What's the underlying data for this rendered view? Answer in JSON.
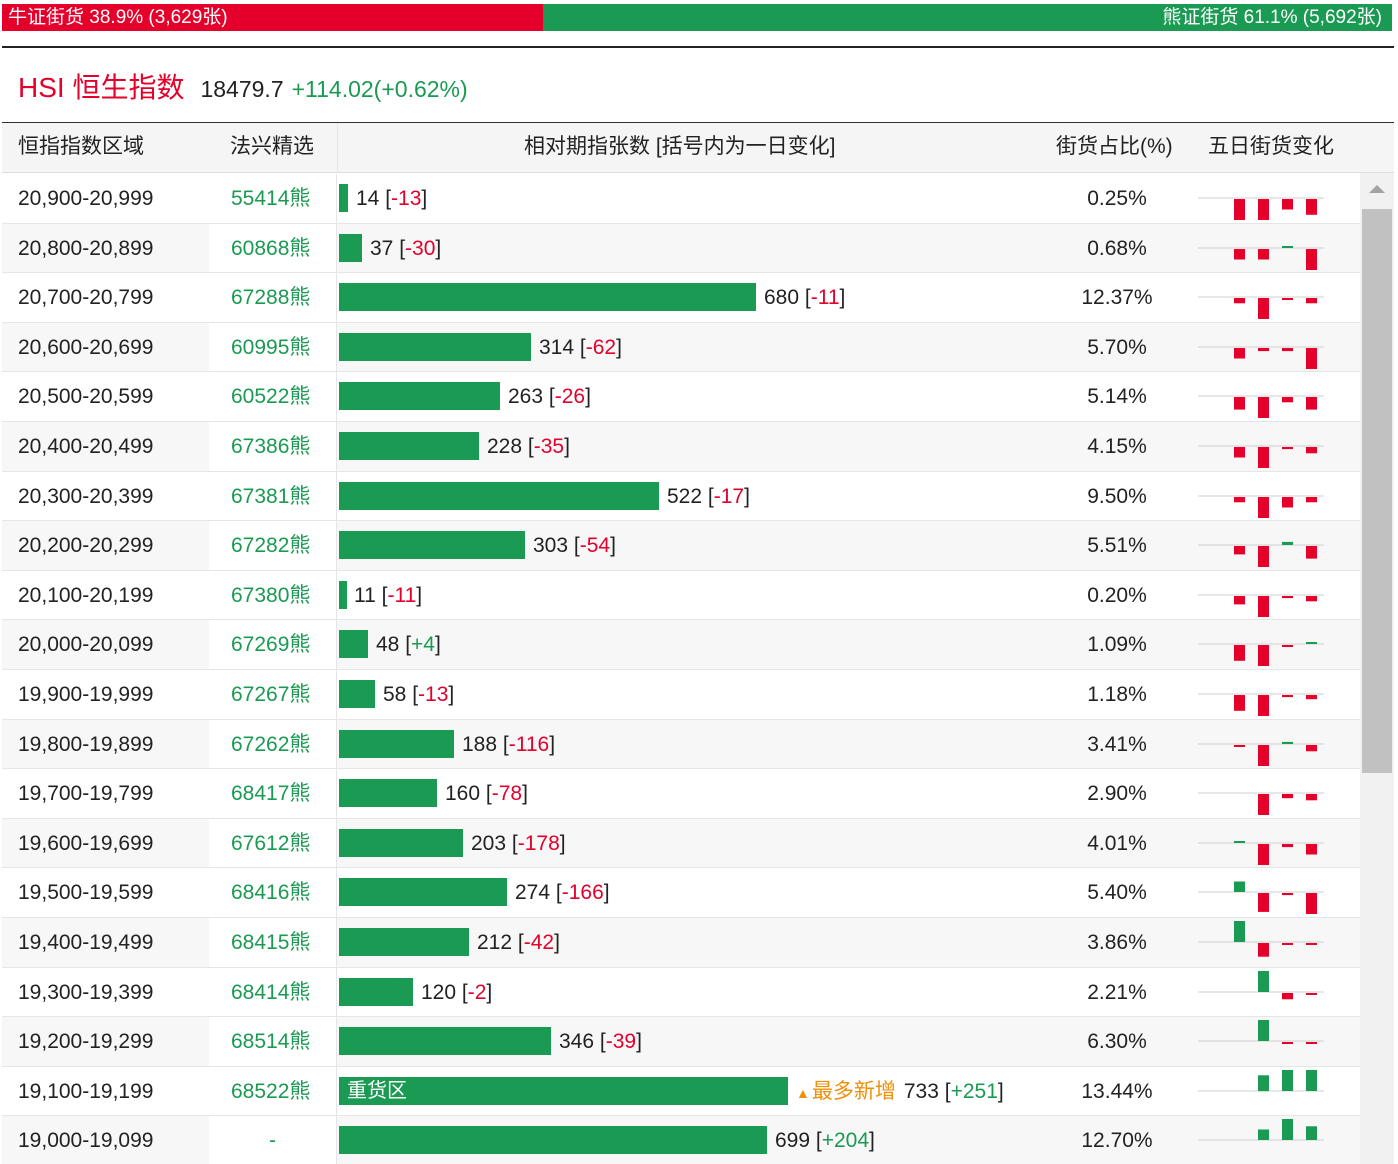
{
  "summary": {
    "bull_label": "牛证街货 38.9% (3,629张)",
    "bear_label": "熊证街货 61.1% (5,692张)",
    "bull_pct": 38.9,
    "bear_pct": 61.1,
    "bull_color": "#e4002b",
    "bear_color": "#1a9a52"
  },
  "index": {
    "name": "HSI 恒生指数",
    "value": "18479.7",
    "change": "+114.02(+0.62%)"
  },
  "headers": {
    "range": "恒指指数区域",
    "pick": "法兴精选",
    "count": "相对期指张数 [括号内为一日变化]",
    "ratio": "街货占比(%)",
    "five_day": "五日街货变化"
  },
  "rows": [
    {
      "range": "20,900-20,999",
      "code": "55414熊",
      "value": 14,
      "value_text": "14",
      "change": "-13",
      "ratio": "0.25%",
      "spark": [
        0,
        -2,
        -2,
        -1,
        -1.5
      ]
    },
    {
      "range": "20,800-20,899",
      "code": "60868熊",
      "value": 37,
      "value_text": "37",
      "change": "-30",
      "ratio": "0.68%",
      "spark": [
        0,
        -1,
        -1,
        0.15,
        -2
      ]
    },
    {
      "range": "20,700-20,799",
      "code": "67288熊",
      "value": 680,
      "value_text": "680",
      "change": "-11",
      "ratio": "12.37%",
      "spark": [
        0,
        -0.5,
        -2,
        -0.15,
        -0.5
      ]
    },
    {
      "range": "20,600-20,699",
      "code": "60995熊",
      "value": 314,
      "value_text": "314",
      "change": "-62",
      "ratio": "5.70%",
      "spark": [
        0,
        -1,
        -0.3,
        -0.3,
        -2
      ]
    },
    {
      "range": "20,500-20,599",
      "code": "60522熊",
      "value": 263,
      "value_text": "263",
      "change": "-26",
      "ratio": "5.14%",
      "spark": [
        0,
        -1.2,
        -2,
        -0.5,
        -1.2
      ]
    },
    {
      "range": "20,400-20,499",
      "code": "67386熊",
      "value": 228,
      "value_text": "228",
      "change": "-35",
      "ratio": "4.15%",
      "spark": [
        0,
        -1,
        -2,
        -0.2,
        -0.6
      ]
    },
    {
      "range": "20,300-20,399",
      "code": "67381熊",
      "value": 522,
      "value_text": "522",
      "change": "-17",
      "ratio": "9.50%",
      "spark": [
        0,
        -0.5,
        -2,
        -1,
        -0.5
      ]
    },
    {
      "range": "20,200-20,299",
      "code": "67282熊",
      "value": 303,
      "value_text": "303",
      "change": "-54",
      "ratio": "5.51%",
      "spark": [
        0,
        -0.8,
        -2,
        0.3,
        -1.2
      ]
    },
    {
      "range": "20,100-20,199",
      "code": "67380熊",
      "value": 11,
      "value_text": "11",
      "change": "-11",
      "ratio": "0.20%",
      "spark": [
        0,
        -0.8,
        -2,
        -0.2,
        -0.5
      ]
    },
    {
      "range": "20,000-20,099",
      "code": "67269熊",
      "value": 48,
      "value_text": "48",
      "change": "+4",
      "ratio": "1.09%",
      "spark": [
        0,
        -1.5,
        -2,
        -0.1,
        0.1
      ]
    },
    {
      "range": "19,900-19,999",
      "code": "67267熊",
      "value": 58,
      "value_text": "58",
      "change": "-13",
      "ratio": "1.18%",
      "spark": [
        0,
        -1.5,
        -2,
        -0.2,
        -0.4
      ]
    },
    {
      "range": "19,800-19,899",
      "code": "67262熊",
      "value": 188,
      "value_text": "188",
      "change": "-116",
      "ratio": "3.41%",
      "spark": [
        0,
        -0.1,
        -2,
        0.2,
        -0.6
      ]
    },
    {
      "range": "19,700-19,799",
      "code": "68417熊",
      "value": 160,
      "value_text": "160",
      "change": "-78",
      "ratio": "2.90%",
      "spark": [
        0,
        0,
        -2,
        -0.4,
        -0.6
      ]
    },
    {
      "range": "19,600-19,699",
      "code": "67612熊",
      "value": 203,
      "value_text": "203",
      "change": "-178",
      "ratio": "4.01%",
      "spark": [
        0,
        0.1,
        -2,
        -0.3,
        -1
      ]
    },
    {
      "range": "19,500-19,599",
      "code": "68416熊",
      "value": 274,
      "value_text": "274",
      "change": "-166",
      "ratio": "5.40%",
      "spark": [
        0,
        1,
        -1.8,
        -0.2,
        -2
      ]
    },
    {
      "range": "19,400-19,499",
      "code": "68415熊",
      "value": 212,
      "value_text": "212",
      "change": "-42",
      "ratio": "3.86%",
      "spark": [
        0,
        2,
        -1.3,
        -0.1,
        -0.1
      ]
    },
    {
      "range": "19,300-19,399",
      "code": "68414熊",
      "value": 120,
      "value_text": "120",
      "change": "-2",
      "ratio": "2.21%",
      "spark": [
        0,
        0,
        2,
        -0.6,
        -0.1
      ]
    },
    {
      "range": "19,200-19,299",
      "code": "68514熊",
      "value": 346,
      "value_text": "346",
      "change": "-39",
      "ratio": "6.30%",
      "spark": [
        0,
        0,
        2,
        -0.1,
        -0.1
      ]
    },
    {
      "range": "19,100-19,199",
      "code": "68522熊",
      "value": 733,
      "value_text": "733",
      "change": "+251",
      "ratio": "13.44%",
      "tag": "重货区",
      "note": "最多新增",
      "spark": [
        0,
        0,
        1.5,
        2,
        2
      ]
    },
    {
      "range": "19,000-19,099",
      "code": "-",
      "value": 699,
      "value_text": "699",
      "change": "+204",
      "ratio": "12.70%",
      "spark": [
        0,
        0,
        1,
        2,
        1.3
      ]
    }
  ],
  "bar_scale_max": 733,
  "up_color": "#1a9a52",
  "down_color": "#e4002b"
}
